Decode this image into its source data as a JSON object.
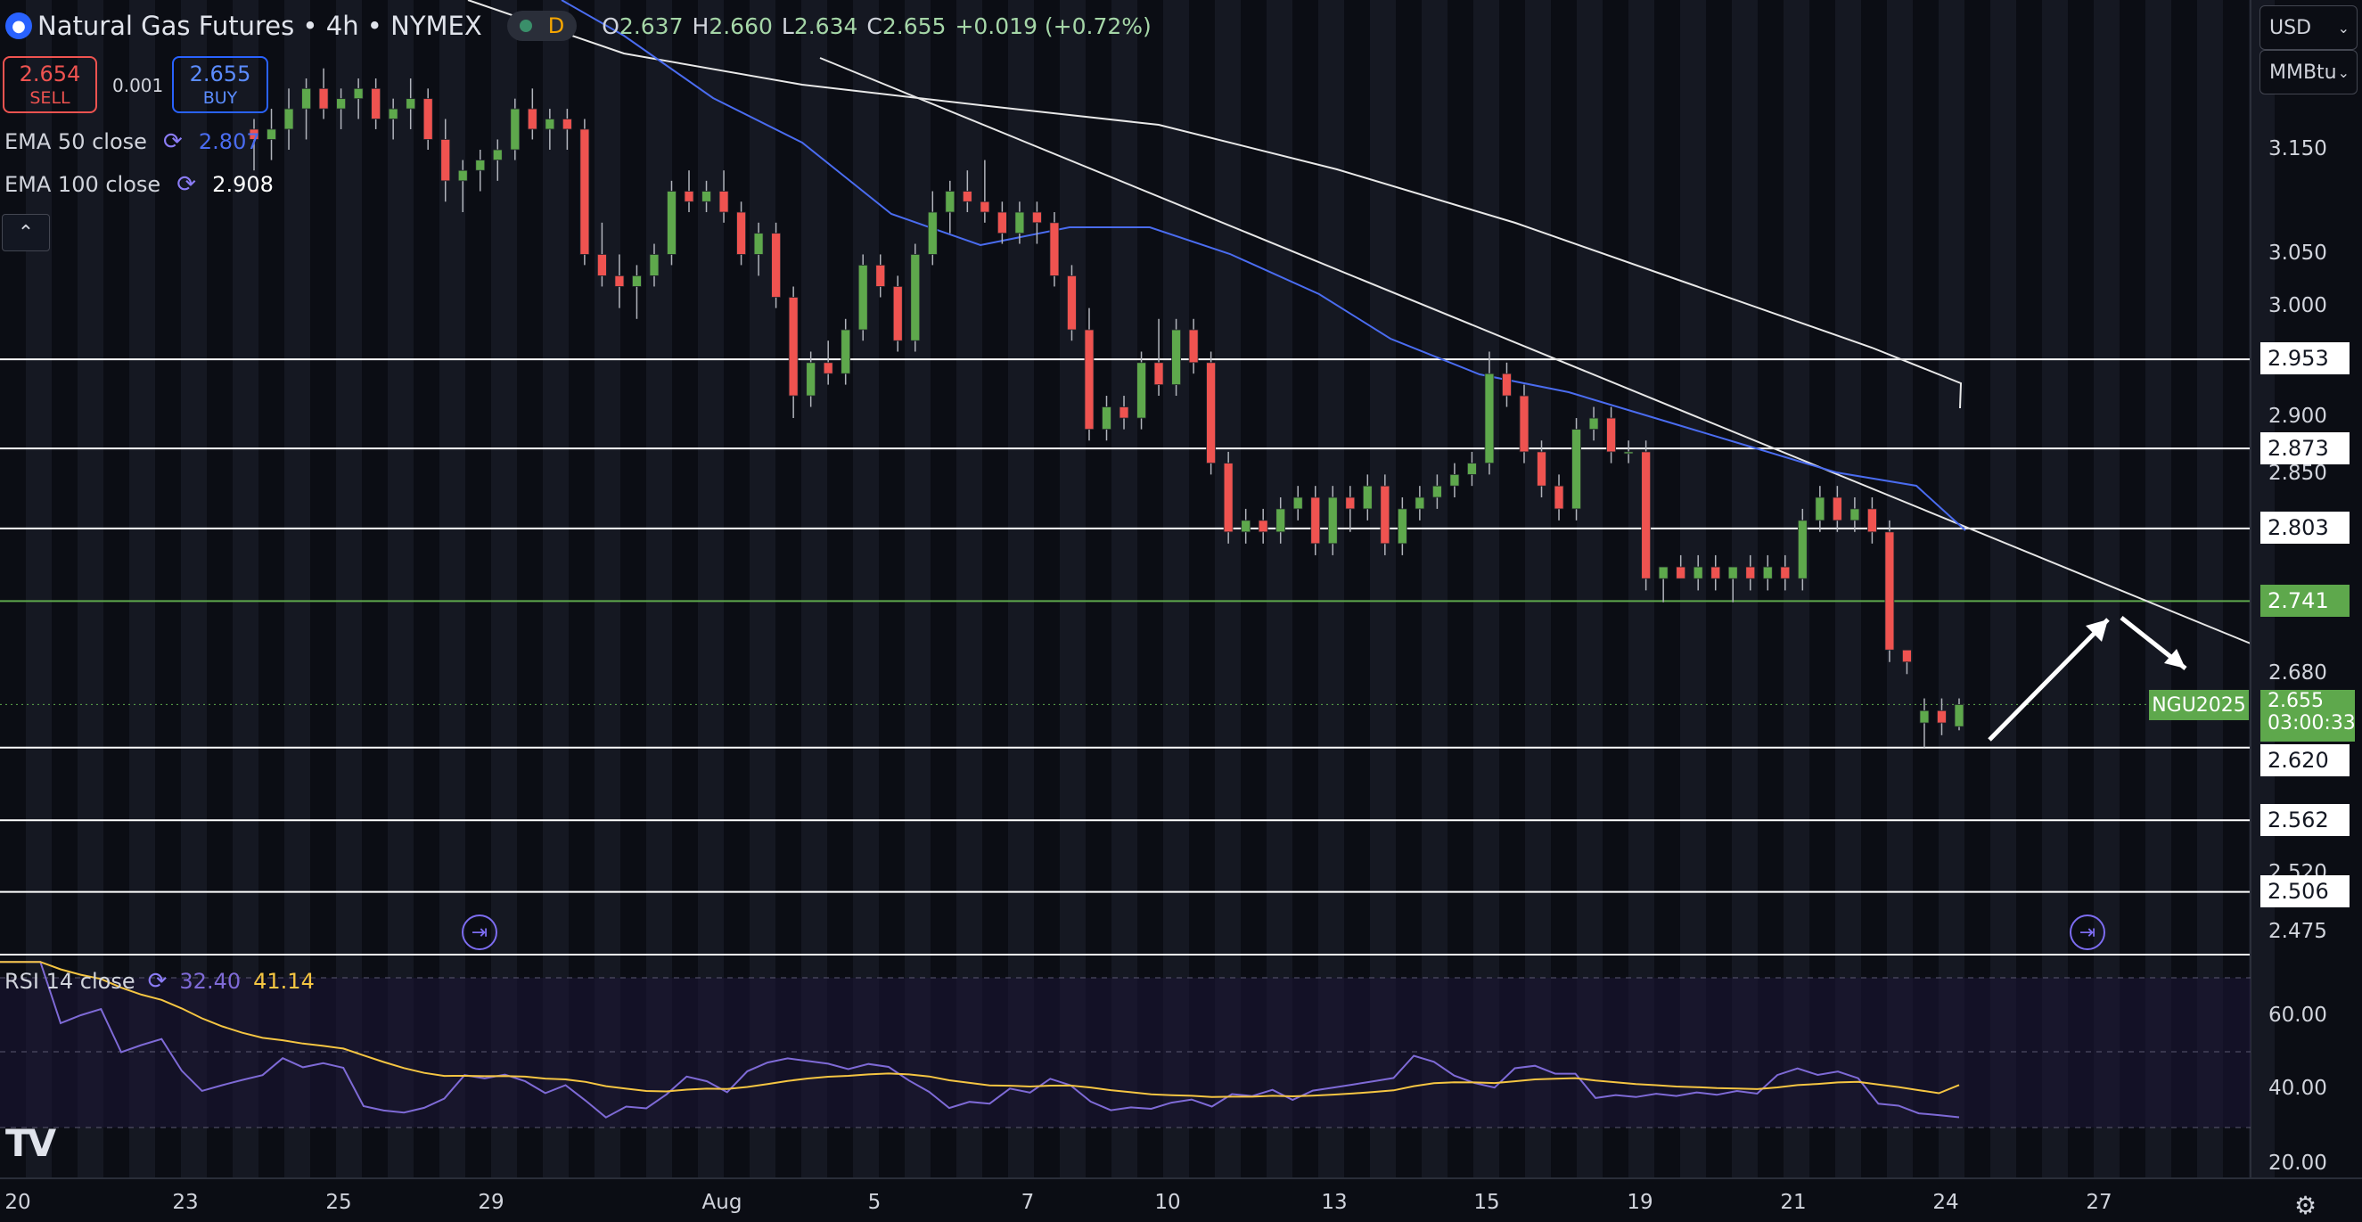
{
  "header": {
    "title": "Natural Gas Futures • 4h • NYMEX",
    "interval_badge": "D",
    "ohlc": {
      "o_label": "O",
      "o": "2.637",
      "h_label": "H",
      "h": "2.660",
      "l_label": "L",
      "l": "2.634",
      "c_label": "C",
      "c": "2.655",
      "change": "+0.019 (+0.72%)"
    }
  },
  "trade": {
    "sell_price": "2.654",
    "sell_label": "SELL",
    "spread": "0.001",
    "buy_price": "2.655",
    "buy_label": "BUY"
  },
  "indicators": {
    "ema50_label": "EMA 50 close",
    "ema50_value": "2.807",
    "ema100_label": "EMA 100 close",
    "ema100_value": "2.908",
    "rsi_label": "RSI 14 close",
    "rsi_value": "32.40",
    "rsi_ma_value": "41.14"
  },
  "currency": {
    "currency": "USD",
    "unit": "MMBtu"
  },
  "price_axis": {
    "ticks": [
      "3.150",
      "3.050",
      "3.000",
      "2.900",
      "2.850",
      "2.680",
      "2.520",
      "2.475"
    ],
    "levels": [
      "2.953",
      "2.873",
      "2.803",
      "2.741",
      "2.620",
      "2.562",
      "2.506"
    ],
    "current_price": "2.655",
    "countdown": "03:00:33",
    "symbol_tag": "NGU2025"
  },
  "rsi_axis": {
    "ticks": [
      "60.00",
      "40.00",
      "20.00"
    ]
  },
  "time_axis": {
    "ticks": [
      "20",
      "23",
      "25",
      "29",
      "Aug",
      "5",
      "7",
      "10",
      "13",
      "15",
      "19",
      "21",
      "24",
      "27"
    ]
  },
  "colors": {
    "background": "#0b0d14",
    "up": "#5ea84c",
    "down": "#ef5350",
    "ema50": "#4a6cf0",
    "ema100": "#e8e8e8",
    "rsi": "#7e6ad6",
    "rsi_ma": "#f5c542"
  },
  "chart_data": {
    "type": "candlestick",
    "symbol": "NGU2025",
    "interval": "4h",
    "ohlc": [
      [
        3.17,
        3.18,
        3.13,
        3.16
      ],
      [
        3.16,
        3.19,
        3.14,
        3.17
      ],
      [
        3.17,
        3.21,
        3.15,
        3.19
      ],
      [
        3.19,
        3.22,
        3.16,
        3.21
      ],
      [
        3.21,
        3.23,
        3.18,
        3.19
      ],
      [
        3.19,
        3.21,
        3.17,
        3.2
      ],
      [
        3.2,
        3.22,
        3.18,
        3.21
      ],
      [
        3.21,
        3.22,
        3.17,
        3.18
      ],
      [
        3.18,
        3.2,
        3.16,
        3.19
      ],
      [
        3.19,
        3.22,
        3.17,
        3.2
      ],
      [
        3.2,
        3.21,
        3.15,
        3.16
      ],
      [
        3.16,
        3.18,
        3.1,
        3.12
      ],
      [
        3.12,
        3.14,
        3.09,
        3.13
      ],
      [
        3.13,
        3.15,
        3.11,
        3.14
      ],
      [
        3.14,
        3.16,
        3.12,
        3.15
      ],
      [
        3.15,
        3.2,
        3.14,
        3.19
      ],
      [
        3.19,
        3.21,
        3.16,
        3.17
      ],
      [
        3.17,
        3.19,
        3.15,
        3.18
      ],
      [
        3.18,
        3.19,
        3.15,
        3.17
      ],
      [
        3.17,
        3.18,
        3.04,
        3.05
      ],
      [
        3.05,
        3.08,
        3.02,
        3.03
      ],
      [
        3.03,
        3.05,
        3.0,
        3.02
      ],
      [
        3.02,
        3.04,
        2.99,
        3.03
      ],
      [
        3.03,
        3.06,
        3.02,
        3.05
      ],
      [
        3.05,
        3.12,
        3.04,
        3.11
      ],
      [
        3.11,
        3.13,
        3.09,
        3.1
      ],
      [
        3.1,
        3.12,
        3.09,
        3.11
      ],
      [
        3.11,
        3.13,
        3.08,
        3.09
      ],
      [
        3.09,
        3.1,
        3.04,
        3.05
      ],
      [
        3.05,
        3.08,
        3.03,
        3.07
      ],
      [
        3.07,
        3.08,
        3.0,
        3.01
      ],
      [
        3.01,
        3.02,
        2.9,
        2.92
      ],
      [
        2.92,
        2.96,
        2.91,
        2.95
      ],
      [
        2.95,
        2.97,
        2.93,
        2.94
      ],
      [
        2.94,
        2.99,
        2.93,
        2.98
      ],
      [
        2.98,
        3.05,
        2.97,
        3.04
      ],
      [
        3.04,
        3.05,
        3.01,
        3.02
      ],
      [
        3.02,
        3.03,
        2.96,
        2.97
      ],
      [
        2.97,
        3.06,
        2.96,
        3.05
      ],
      [
        3.05,
        3.11,
        3.04,
        3.09
      ],
      [
        3.09,
        3.12,
        3.07,
        3.11
      ],
      [
        3.11,
        3.13,
        3.09,
        3.1
      ],
      [
        3.1,
        3.14,
        3.08,
        3.09
      ],
      [
        3.09,
        3.1,
        3.06,
        3.07
      ],
      [
        3.07,
        3.1,
        3.06,
        3.09
      ],
      [
        3.09,
        3.1,
        3.06,
        3.08
      ],
      [
        3.08,
        3.09,
        3.02,
        3.03
      ],
      [
        3.03,
        3.04,
        2.97,
        2.98
      ],
      [
        2.98,
        3.0,
        2.88,
        2.89
      ],
      [
        2.89,
        2.92,
        2.88,
        2.91
      ],
      [
        2.91,
        2.92,
        2.89,
        2.9
      ],
      [
        2.9,
        2.96,
        2.89,
        2.95
      ],
      [
        2.95,
        2.99,
        2.92,
        2.93
      ],
      [
        2.93,
        2.99,
        2.92,
        2.98
      ],
      [
        2.98,
        2.99,
        2.94,
        2.95
      ],
      [
        2.95,
        2.96,
        2.85,
        2.86
      ],
      [
        2.86,
        2.87,
        2.79,
        2.8
      ],
      [
        2.8,
        2.82,
        2.79,
        2.81
      ],
      [
        2.81,
        2.82,
        2.79,
        2.8
      ],
      [
        2.8,
        2.83,
        2.79,
        2.82
      ],
      [
        2.82,
        2.84,
        2.81,
        2.83
      ],
      [
        2.83,
        2.84,
        2.78,
        2.79
      ],
      [
        2.79,
        2.84,
        2.78,
        2.83
      ],
      [
        2.83,
        2.84,
        2.8,
        2.82
      ],
      [
        2.82,
        2.85,
        2.81,
        2.84
      ],
      [
        2.84,
        2.85,
        2.78,
        2.79
      ],
      [
        2.79,
        2.83,
        2.78,
        2.82
      ],
      [
        2.82,
        2.84,
        2.81,
        2.83
      ],
      [
        2.83,
        2.85,
        2.82,
        2.84
      ],
      [
        2.84,
        2.86,
        2.83,
        2.85
      ],
      [
        2.85,
        2.87,
        2.84,
        2.86
      ],
      [
        2.86,
        2.96,
        2.85,
        2.94
      ],
      [
        2.94,
        2.95,
        2.91,
        2.92
      ],
      [
        2.92,
        2.93,
        2.86,
        2.87
      ],
      [
        2.87,
        2.88,
        2.83,
        2.84
      ],
      [
        2.84,
        2.85,
        2.81,
        2.82
      ],
      [
        2.82,
        2.9,
        2.81,
        2.89
      ],
      [
        2.89,
        2.91,
        2.88,
        2.9
      ],
      [
        2.9,
        2.91,
        2.86,
        2.87
      ],
      [
        2.87,
        2.88,
        2.86,
        2.87
      ],
      [
        2.87,
        2.88,
        2.75,
        2.76
      ],
      [
        2.76,
        2.77,
        2.74,
        2.77
      ],
      [
        2.77,
        2.78,
        2.76,
        2.76
      ],
      [
        2.76,
        2.78,
        2.75,
        2.77
      ],
      [
        2.77,
        2.78,
        2.75,
        2.76
      ],
      [
        2.76,
        2.77,
        2.74,
        2.77
      ],
      [
        2.77,
        2.78,
        2.75,
        2.76
      ],
      [
        2.76,
        2.78,
        2.75,
        2.77
      ],
      [
        2.77,
        2.78,
        2.75,
        2.76
      ],
      [
        2.76,
        2.82,
        2.75,
        2.81
      ],
      [
        2.81,
        2.84,
        2.8,
        2.83
      ],
      [
        2.83,
        2.84,
        2.8,
        2.81
      ],
      [
        2.81,
        2.83,
        2.8,
        2.82
      ],
      [
        2.82,
        2.83,
        2.79,
        2.8
      ],
      [
        2.8,
        2.81,
        2.69,
        2.7
      ],
      [
        2.7,
        2.7,
        2.68,
        2.69
      ],
      [
        2.64,
        2.66,
        2.62,
        2.65
      ],
      [
        2.65,
        2.66,
        2.63,
        2.64
      ],
      [
        2.637,
        2.66,
        2.634,
        2.655
      ]
    ],
    "ema50_value": 2.807,
    "ema100_value": 2.908,
    "horizontal_levels": [
      2.953,
      2.873,
      2.803,
      2.741,
      2.62,
      2.562,
      2.506
    ],
    "y_axis": {
      "scale": "log",
      "range": [
        2.46,
        3.23
      ]
    },
    "rsi_value": 32.4,
    "rsi_ma_value": 41.14,
    "rsi_range": [
      15,
      75
    ]
  }
}
